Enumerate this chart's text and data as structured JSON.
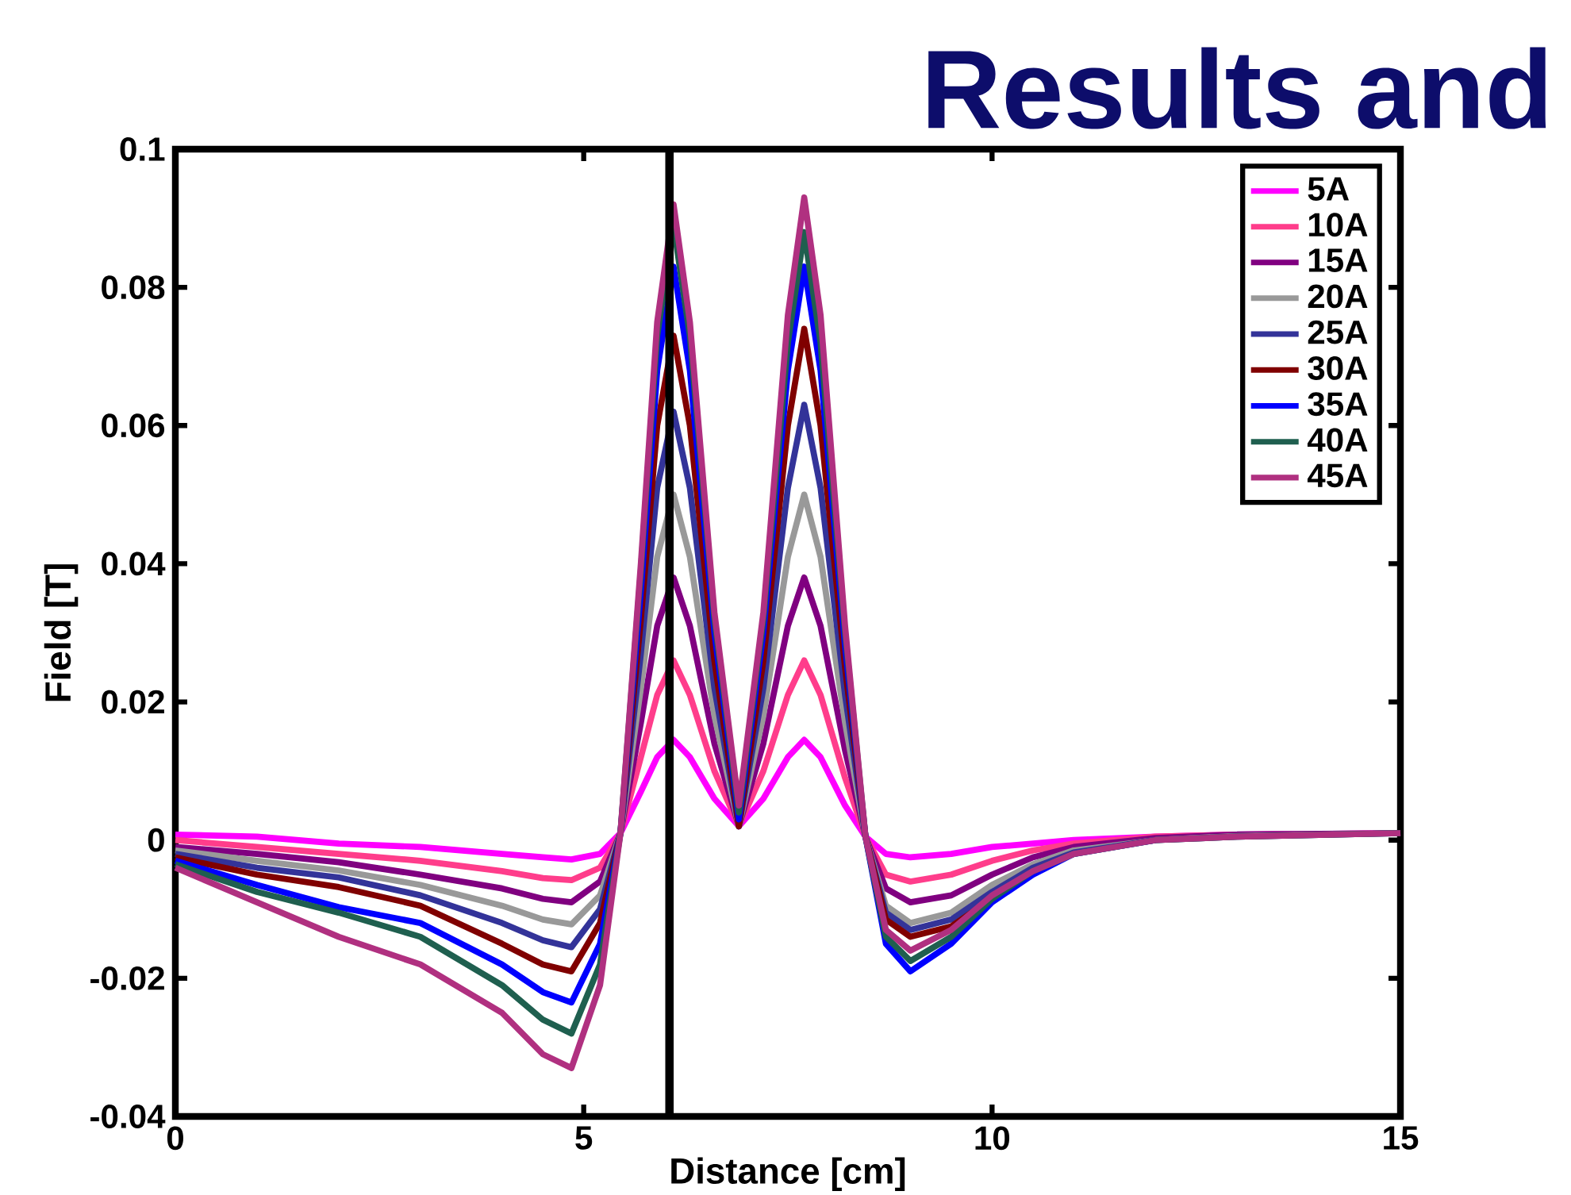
{
  "chart_data": {
    "type": "line",
    "title": "Results and",
    "xlabel": "Distance [cm]",
    "ylabel": "Field [T]",
    "x": [
      0,
      1,
      2,
      3,
      4,
      4.5,
      4.85,
      5.2,
      5.45,
      5.7,
      5.9,
      6.1,
      6.3,
      6.6,
      6.9,
      7.2,
      7.5,
      7.7,
      7.9,
      8.2,
      8.45,
      8.7,
      9.0,
      9.5,
      10,
      10.5,
      11,
      12,
      13,
      15
    ],
    "series": [
      {
        "name": "5A",
        "color": "#ff00ff",
        "values": [
          0.0008,
          0.0005,
          -0.0005,
          -0.001,
          -0.002,
          -0.0025,
          -0.0028,
          -0.002,
          0.001,
          0.007,
          0.012,
          0.0145,
          0.012,
          0.006,
          0.002,
          0.006,
          0.012,
          0.0145,
          0.012,
          0.005,
          0.0005,
          -0.002,
          -0.0025,
          -0.002,
          -0.001,
          -0.0005,
          0,
          0.0005,
          0.0008,
          0.001
        ]
      },
      {
        "name": "10A",
        "color": "#ff3d8b",
        "values": [
          0,
          -0.001,
          -0.002,
          -0.003,
          -0.0045,
          -0.0055,
          -0.0058,
          -0.004,
          0.001,
          0.012,
          0.021,
          0.026,
          0.021,
          0.01,
          0.002,
          0.01,
          0.021,
          0.026,
          0.021,
          0.009,
          0.0005,
          -0.005,
          -0.006,
          -0.005,
          -0.003,
          -0.0015,
          -0.0005,
          0.0005,
          0.0008,
          0.001
        ]
      },
      {
        "name": "15A",
        "color": "#800080",
        "values": [
          -0.001,
          -0.002,
          -0.0032,
          -0.005,
          -0.007,
          -0.0085,
          -0.009,
          -0.006,
          0.001,
          0.017,
          0.031,
          0.038,
          0.031,
          0.014,
          0.002,
          0.014,
          0.031,
          0.038,
          0.031,
          0.013,
          0.0005,
          -0.007,
          -0.009,
          -0.008,
          -0.005,
          -0.0025,
          -0.001,
          0.0003,
          0.0008,
          0.001
        ]
      },
      {
        "name": "20A",
        "color": "#999999",
        "values": [
          -0.0015,
          -0.003,
          -0.0044,
          -0.0065,
          -0.0095,
          -0.0115,
          -0.0122,
          -0.008,
          0.001,
          0.022,
          0.041,
          0.05,
          0.041,
          0.018,
          0.002,
          0.018,
          0.041,
          0.05,
          0.041,
          0.017,
          0.0005,
          -0.0095,
          -0.012,
          -0.0105,
          -0.0065,
          -0.0035,
          -0.0015,
          0,
          0.0006,
          0.001
        ]
      },
      {
        "name": "25A",
        "color": "#333399",
        "values": [
          -0.002,
          -0.004,
          -0.0054,
          -0.008,
          -0.012,
          -0.0145,
          -0.0155,
          -0.01,
          0.001,
          0.027,
          0.051,
          0.062,
          0.051,
          0.022,
          0.002,
          0.022,
          0.051,
          0.063,
          0.051,
          0.021,
          0.0005,
          -0.0105,
          -0.013,
          -0.0115,
          -0.0075,
          -0.004,
          -0.0018,
          0,
          0.0005,
          0.001
        ]
      },
      {
        "name": "30A",
        "color": "#800000",
        "values": [
          -0.0025,
          -0.005,
          -0.0068,
          -0.0095,
          -0.015,
          -0.018,
          -0.019,
          -0.012,
          0.001,
          0.032,
          0.06,
          0.073,
          0.06,
          0.026,
          0.002,
          0.026,
          0.06,
          0.074,
          0.06,
          0.025,
          0.0005,
          -0.0115,
          -0.014,
          -0.0125,
          -0.0085,
          -0.0045,
          null,
          null,
          null,
          null
        ]
      },
      {
        "name": "35A",
        "color": "#0000ff",
        "values": [
          -0.003,
          -0.0065,
          -0.0097,
          -0.012,
          -0.018,
          -0.022,
          -0.0235,
          -0.015,
          0.001,
          0.036,
          0.068,
          0.083,
          0.068,
          0.03,
          0.003,
          0.03,
          0.068,
          0.083,
          0.068,
          0.028,
          0.0005,
          -0.015,
          -0.019,
          -0.015,
          -0.009,
          -0.005,
          -0.002,
          0,
          null,
          null
        ]
      },
      {
        "name": "40A",
        "color": "#1f5f4f",
        "values": [
          -0.0035,
          -0.0075,
          -0.0105,
          -0.014,
          -0.021,
          -0.026,
          -0.028,
          -0.018,
          0.001,
          0.039,
          0.073,
          0.089,
          0.073,
          0.032,
          0.004,
          0.032,
          0.072,
          0.088,
          0.072,
          0.03,
          0.0005,
          -0.014,
          -0.0175,
          -0.014,
          -0.0085,
          -0.0045,
          -0.002,
          0,
          0.0005,
          0.001
        ]
      },
      {
        "name": "45A",
        "color": "#b03080",
        "values": [
          -0.004,
          -0.009,
          -0.014,
          -0.018,
          -0.025,
          -0.031,
          -0.033,
          -0.021,
          0.001,
          0.04,
          0.075,
          0.092,
          0.075,
          0.033,
          0.005,
          0.033,
          0.076,
          0.093,
          0.076,
          0.031,
          0.0005,
          -0.013,
          -0.016,
          -0.013,
          -0.008,
          -0.0045,
          -0.002,
          0,
          0.0005,
          0.001
        ]
      }
    ],
    "xlim": [
      0,
      15
    ],
    "xticks": [
      0,
      5,
      10,
      15
    ],
    "ylim": [
      -0.04,
      0.1
    ],
    "yticks": [
      -0.04,
      -0.02,
      0,
      0.02,
      0.04,
      0.06,
      0.08,
      0.1
    ],
    "ref_lines": [
      {
        "axis": "x",
        "value": 6.05,
        "color": "#000000"
      }
    ],
    "legend": "top right",
    "grid": false
  }
}
